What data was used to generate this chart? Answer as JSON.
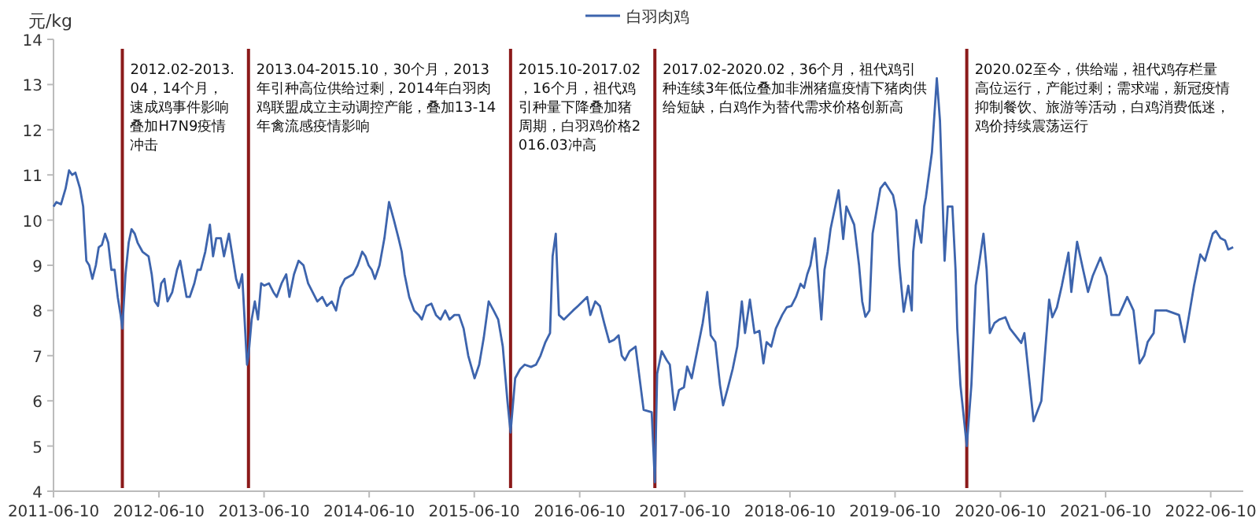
{
  "chart_data": {
    "type": "line",
    "ylabel": "元/kg",
    "legend": "top",
    "grid": false,
    "marker": "none",
    "line_style": "solid",
    "xlim": [
      "2011-06-10",
      "2022-10-01"
    ],
    "xticks": [
      "2011-06-10",
      "2012-06-10",
      "2013-06-10",
      "2014-06-10",
      "2015-06-10",
      "2016-06-10",
      "2017-06-10",
      "2018-06-10",
      "2019-06-10",
      "2020-06-10",
      "2021-06-10",
      "2022-06-10"
    ],
    "ylim": [
      4,
      14
    ],
    "yticks": [
      4,
      5,
      6,
      7,
      8,
      9,
      10,
      11,
      12,
      13,
      14
    ],
    "ref_lines": [
      {
        "axis": "x",
        "value": "2012-02-04",
        "color": "#8b1a1a"
      },
      {
        "axis": "x",
        "value": "2013-04-17",
        "color": "#8b1a1a"
      },
      {
        "axis": "x",
        "value": "2015-10-14",
        "color": "#8b1a1a"
      },
      {
        "axis": "x",
        "value": "2017-02-26",
        "color": "#8b1a1a"
      },
      {
        "axis": "x",
        "value": "2020-02-14",
        "color": "#8b1a1a"
      }
    ],
    "annotations": [
      "2012.02-2013.04，14个月，速成鸡事件影响叠加H7N9疫情冲击",
      "2013.04-2015.10，30个月，2013年引种高位供给过剩，2014年白羽肉鸡联盟成立主动调控产能，叠加13-14年禽流感疫情影响",
      "2015.10-2017.02，16个月，祖代鸡引种量下降叠加猪周期，白羽鸡价格2016.03冲高",
      "2017.02-2020.02，36个月，祖代鸡引种连续3年低位叠加非洲猪瘟疫情下猪肉供给短缺，白鸡作为替代需求价格创新高",
      "2020.02至今，供给端，祖代鸡存栏量高位运行，产能过剩；需求端，新冠疫情抑制餐饮、旅游等活动，白鸡消费低迷，鸡价持续震荡运行"
    ],
    "series": [
      {
        "name": "白羽肉鸡",
        "color": "#3d64ad",
        "x": [
          "2011-06-10",
          "2011-06-20",
          "2011-07-06",
          "2011-07-22",
          "2011-08-03",
          "2011-08-14",
          "2011-08-25",
          "2011-09-10",
          "2011-09-21",
          "2011-10-02",
          "2011-10-12",
          "2011-10-23",
          "2011-11-04",
          "2011-11-14",
          "2011-11-25",
          "2011-12-06",
          "2011-12-17",
          "2011-12-28",
          "2012-01-08",
          "2012-01-19",
          "2012-01-29",
          "2012-02-04",
          "2012-02-15",
          "2012-02-26",
          "2012-03-07",
          "2012-03-18",
          "2012-03-28",
          "2012-04-14",
          "2012-05-05",
          "2012-05-16",
          "2012-05-27",
          "2012-06-07",
          "2012-06-18",
          "2012-06-29",
          "2012-07-10",
          "2012-07-26",
          "2012-08-12",
          "2012-08-23",
          "2012-09-03",
          "2012-09-14",
          "2012-09-25",
          "2012-10-11",
          "2012-10-22",
          "2012-11-02",
          "2012-11-18",
          "2012-12-04",
          "2012-12-15",
          "2012-12-26",
          "2013-01-11",
          "2013-01-22",
          "2013-02-08",
          "2013-02-18",
          "2013-03-05",
          "2013-03-15",
          "2013-03-26",
          "2013-04-06",
          "2013-04-12",
          "2013-04-17",
          "2013-04-28",
          "2013-05-09",
          "2013-05-20",
          "2013-05-31",
          "2013-06-11",
          "2013-06-27",
          "2013-07-13",
          "2013-07-24",
          "2013-08-10",
          "2013-08-26",
          "2013-09-06",
          "2013-09-22",
          "2013-10-08",
          "2013-10-25",
          "2013-11-10",
          "2013-11-26",
          "2013-12-12",
          "2013-12-29",
          "2014-01-14",
          "2014-01-31",
          "2014-02-15",
          "2014-03-02",
          "2014-03-18",
          "2014-04-15",
          "2014-05-01",
          "2014-05-17",
          "2014-05-28",
          "2014-06-08",
          "2014-06-19",
          "2014-06-30",
          "2014-07-16",
          "2014-08-02",
          "2014-08-18",
          "2014-09-04",
          "2014-09-20",
          "2014-10-01",
          "2014-10-11",
          "2014-10-27",
          "2014-11-13",
          "2014-11-29",
          "2014-12-10",
          "2014-12-26",
          "2015-01-12",
          "2015-01-28",
          "2015-02-13",
          "2015-03-01",
          "2015-03-16",
          "2015-04-02",
          "2015-04-18",
          "2015-05-04",
          "2015-05-20",
          "2015-06-11",
          "2015-06-27",
          "2015-07-13",
          "2015-07-30",
          "2015-08-16",
          "2015-09-01",
          "2015-09-17",
          "2015-10-03",
          "2015-10-14",
          "2015-10-30",
          "2015-11-16",
          "2015-12-02",
          "2015-12-24",
          "2016-01-10",
          "2016-01-26",
          "2016-02-12",
          "2016-02-28",
          "2016-03-08",
          "2016-03-19",
          "2016-03-30",
          "2016-04-16",
          "2016-05-02",
          "2016-05-18",
          "2016-06-04",
          "2016-06-20",
          "2016-07-06",
          "2016-07-17",
          "2016-08-03",
          "2016-08-19",
          "2016-09-04",
          "2016-09-21",
          "2016-10-07",
          "2016-10-23",
          "2016-11-03",
          "2016-11-14",
          "2016-11-30",
          "2016-12-21",
          "2017-01-18",
          "2017-02-15",
          "2017-02-26",
          "2017-03-06",
          "2017-03-22",
          "2017-04-08",
          "2017-04-19",
          "2017-05-05",
          "2017-05-21",
          "2017-06-07",
          "2017-06-18",
          "2017-07-04",
          "2017-08-11",
          "2017-08-27",
          "2017-09-08",
          "2017-09-24",
          "2017-10-10",
          "2017-10-21",
          "2017-11-07",
          "2017-11-23",
          "2017-12-09",
          "2017-12-25",
          "2018-01-05",
          "2018-01-22",
          "2018-02-07",
          "2018-02-24",
          "2018-03-10",
          "2018-03-21",
          "2018-04-06",
          "2018-04-22",
          "2018-05-14",
          "2018-05-30",
          "2018-06-15",
          "2018-07-01",
          "2018-07-17",
          "2018-07-29",
          "2018-08-09",
          "2018-08-20",
          "2018-09-05",
          "2018-09-16",
          "2018-09-27",
          "2018-10-08",
          "2018-10-19",
          "2018-10-29",
          "2018-11-26",
          "2018-12-12",
          "2018-12-23",
          "2019-01-19",
          "2019-02-05",
          "2019-02-16",
          "2019-02-27",
          "2019-03-13",
          "2019-03-24",
          "2019-04-20",
          "2019-05-06",
          "2019-06-03",
          "2019-06-14",
          "2019-06-25",
          "2019-07-10",
          "2019-07-26",
          "2019-08-07",
          "2019-08-12",
          "2019-08-23",
          "2019-09-09",
          "2019-09-19",
          "2019-09-25",
          "2019-10-16",
          "2019-11-02",
          "2019-11-13",
          "2019-11-29",
          "2019-12-10",
          "2019-12-26",
          "2020-01-06",
          "2020-01-12",
          "2020-01-23",
          "2020-02-14",
          "2020-03-01",
          "2020-03-16",
          "2020-03-27",
          "2020-04-12",
          "2020-04-23",
          "2020-05-04",
          "2020-05-20",
          "2020-06-06",
          "2020-06-27",
          "2020-07-13",
          "2020-08-21",
          "2020-09-01",
          "2020-10-03",
          "2020-10-30",
          "2020-11-26",
          "2020-12-07",
          "2020-12-23",
          "2021-01-09",
          "2021-02-01",
          "2021-02-11",
          "2021-03-03",
          "2021-03-24",
          "2021-04-10",
          "2021-04-26",
          "2021-05-23",
          "2021-06-14",
          "2021-06-30",
          "2021-07-27",
          "2021-08-24",
          "2021-09-15",
          "2021-10-06",
          "2021-10-22",
          "2021-11-03",
          "2021-11-24",
          "2021-11-30",
          "2022-01-07",
          "2022-02-20",
          "2022-03-11",
          "2022-03-27",
          "2022-04-13",
          "2022-05-05",
          "2022-05-21",
          "2022-06-17",
          "2022-06-28",
          "2022-07-14",
          "2022-07-30",
          "2022-08-10",
          "2022-08-27"
        ],
        "values": [
          10.3,
          10.4,
          10.35,
          10.7,
          11.1,
          11.0,
          11.05,
          10.7,
          10.3,
          9.1,
          9.0,
          8.7,
          9.0,
          9.4,
          9.45,
          9.7,
          9.5,
          8.9,
          8.9,
          8.3,
          7.9,
          7.6,
          8.8,
          9.5,
          9.8,
          9.7,
          9.5,
          9.3,
          9.2,
          8.8,
          8.2,
          8.1,
          8.6,
          8.7,
          8.2,
          8.4,
          8.9,
          9.1,
          8.7,
          8.3,
          8.3,
          8.6,
          8.9,
          8.9,
          9.3,
          9.9,
          9.2,
          9.6,
          9.6,
          9.2,
          9.7,
          9.3,
          8.7,
          8.5,
          8.8,
          7.5,
          6.8,
          7.0,
          7.8,
          8.2,
          7.8,
          8.6,
          8.55,
          8.6,
          8.4,
          8.3,
          8.6,
          8.8,
          8.3,
          8.8,
          9.1,
          9.0,
          8.6,
          8.4,
          8.2,
          8.3,
          8.1,
          8.2,
          8.0,
          8.5,
          8.7,
          8.8,
          9.0,
          9.3,
          9.2,
          9.0,
          8.9,
          8.7,
          9.0,
          9.6,
          10.4,
          10.0,
          9.6,
          9.3,
          8.8,
          8.3,
          8.0,
          7.9,
          7.8,
          8.1,
          8.15,
          7.9,
          7.8,
          8.0,
          7.8,
          7.9,
          7.9,
          7.6,
          7.0,
          6.5,
          6.8,
          7.4,
          8.2,
          8.0,
          7.8,
          7.2,
          6.0,
          5.3,
          6.5,
          6.7,
          6.8,
          6.75,
          6.8,
          7.0,
          7.3,
          7.5,
          9.2,
          9.7,
          7.9,
          7.8,
          7.9,
          8.0,
          8.1,
          8.2,
          8.3,
          7.9,
          8.2,
          8.1,
          7.7,
          7.3,
          7.35,
          7.45,
          7.0,
          6.9,
          7.1,
          7.2,
          5.8,
          5.75,
          4.2,
          6.6,
          7.1,
          6.9,
          6.8,
          5.8,
          6.24,
          6.3,
          6.76,
          6.5,
          7.72,
          8.41,
          7.45,
          7.3,
          6.35,
          5.9,
          6.3,
          6.7,
          7.2,
          8.2,
          7.5,
          8.24,
          7.5,
          7.55,
          6.83,
          7.3,
          7.2,
          7.6,
          7.9,
          8.07,
          8.1,
          8.3,
          8.59,
          8.5,
          8.8,
          9.0,
          9.6,
          8.7,
          7.8,
          8.9,
          9.3,
          9.8,
          10.66,
          9.58,
          10.3,
          9.9,
          9.0,
          8.2,
          7.86,
          8.0,
          9.7,
          10.7,
          10.83,
          10.55,
          10.2,
          9.0,
          7.97,
          8.55,
          8.0,
          9.3,
          10.0,
          9.5,
          10.3,
          10.5,
          11.5,
          13.14,
          12.2,
          9.1,
          10.3,
          10.3,
          8.9,
          7.6,
          6.35,
          5.0,
          6.35,
          8.55,
          9.0,
          9.7,
          8.9,
          7.5,
          7.72,
          7.8,
          7.85,
          7.6,
          7.28,
          7.5,
          5.55,
          6.0,
          8.24,
          7.85,
          8.07,
          8.55,
          9.28,
          8.41,
          9.52,
          8.9,
          8.41,
          8.76,
          9.17,
          8.76,
          7.9,
          7.9,
          8.3,
          8.0,
          6.83,
          7.0,
          7.3,
          7.5,
          8.0,
          8.0,
          7.9,
          7.3,
          7.9,
          8.55,
          9.24,
          9.1,
          9.7,
          9.76,
          9.6,
          9.55,
          9.35,
          9.4
        ]
      }
    ]
  }
}
